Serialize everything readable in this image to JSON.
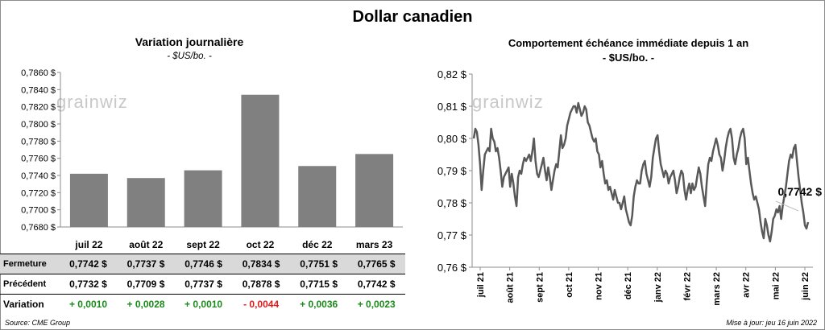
{
  "main_title": "Dollar canadien",
  "left": {
    "title": "Variation  journalière",
    "unit": "- $US/bo. -"
  },
  "right": {
    "title": "Comportement échéance immédiate depuis 1 an",
    "unit": "- $US/bo. -",
    "last_label": "0,7742 $"
  },
  "watermark": "grainwiz",
  "colors": {
    "bar": "#808080",
    "line": "#595959",
    "positive": "#1a8a1a",
    "negative": "#e01b1b",
    "header_fill": "#d9d9d9"
  },
  "table": {
    "row_labels": [
      "Fermeture",
      "Précédent",
      "Variation"
    ],
    "fermeture": [
      "0,7742 $",
      "0,7737 $",
      "0,7746 $",
      "0,7834 $",
      "0,7751 $",
      "0,7765 $"
    ],
    "precedent": [
      "0,7732 $",
      "0,7709 $",
      "0,7737 $",
      "0,7878 $",
      "0,7715 $",
      "0,7742 $"
    ],
    "variation": [
      "+ 0,0010",
      "+ 0,0028",
      "+ 0,0010",
      "- 0,0044",
      "+ 0,0036",
      "+ 0,0023"
    ]
  },
  "footer": {
    "source": "Source: CME Group",
    "update": "Mise à jour: jeu 16 juin 2022"
  },
  "chart_data": [
    {
      "type": "bar",
      "title": "Variation  journalière",
      "categories": [
        "juil 22",
        "août 22",
        "sept 22",
        "oct 22",
        "déc 22",
        "mars 23"
      ],
      "values": [
        0.7742,
        0.7737,
        0.7746,
        0.7834,
        0.7751,
        0.7765
      ],
      "ylim": [
        0.768,
        0.786
      ],
      "yticks": [
        "0,7680 $",
        "0,7700 $",
        "0,7720 $",
        "0,7740 $",
        "0,7760 $",
        "0,7780 $",
        "0,7800 $",
        "0,7820 $",
        "0,7840 $",
        "0,7860 $"
      ],
      "grid": false
    },
    {
      "type": "line",
      "title": "Comportement échéance immédiate depuis 1 an",
      "xlabels": [
        "juil 21",
        "août 21",
        "sept 21",
        "oct 21",
        "nov 21",
        "déc 21",
        "janv 22",
        "févr 22",
        "mars 22",
        "avr 22",
        "mai 22",
        "juin 22"
      ],
      "yticks": [
        "0,76 $",
        "0,77 $",
        "0,78 $",
        "0,79 $",
        "0,80 $",
        "0,81 $",
        "0,82 $"
      ],
      "ylim": [
        0.76,
        0.82
      ],
      "values": [
        0.8,
        0.803,
        0.802,
        0.798,
        0.792,
        0.784,
        0.79,
        0.795,
        0.796,
        0.797,
        0.796,
        0.803,
        0.8,
        0.799,
        0.796,
        0.797,
        0.794,
        0.79,
        0.785,
        0.788,
        0.789,
        0.79,
        0.791,
        0.785,
        0.789,
        0.786,
        0.782,
        0.779,
        0.788,
        0.79,
        0.789,
        0.792,
        0.794,
        0.793,
        0.794,
        0.795,
        0.793,
        0.796,
        0.8,
        0.793,
        0.789,
        0.788,
        0.79,
        0.792,
        0.794,
        0.79,
        0.787,
        0.791,
        0.788,
        0.784,
        0.787,
        0.79,
        0.792,
        0.791,
        0.796,
        0.801,
        0.797,
        0.798,
        0.8,
        0.804,
        0.806,
        0.808,
        0.809,
        0.81,
        0.81,
        0.808,
        0.811,
        0.809,
        0.807,
        0.808,
        0.81,
        0.809,
        0.805,
        0.804,
        0.802,
        0.8,
        0.799,
        0.8,
        0.796,
        0.795,
        0.791,
        0.793,
        0.789,
        0.786,
        0.787,
        0.784,
        0.785,
        0.783,
        0.781,
        0.784,
        0.782,
        0.78,
        0.78,
        0.778,
        0.78,
        0.782,
        0.778,
        0.776,
        0.774,
        0.773,
        0.776,
        0.782,
        0.785,
        0.787,
        0.786,
        0.786,
        0.79,
        0.792,
        0.793,
        0.789,
        0.787,
        0.785,
        0.788,
        0.794,
        0.797,
        0.8,
        0.801,
        0.796,
        0.792,
        0.79,
        0.788,
        0.79,
        0.789,
        0.786,
        0.788,
        0.789,
        0.79,
        0.787,
        0.783,
        0.785,
        0.788,
        0.79,
        0.789,
        0.784,
        0.781,
        0.784,
        0.786,
        0.783,
        0.786,
        0.784,
        0.785,
        0.788,
        0.791,
        0.789,
        0.785,
        0.782,
        0.779,
        0.786,
        0.792,
        0.794,
        0.793,
        0.796,
        0.798,
        0.8,
        0.798,
        0.795,
        0.794,
        0.79,
        0.793,
        0.797,
        0.8,
        0.802,
        0.803,
        0.8,
        0.794,
        0.792,
        0.795,
        0.797,
        0.8,
        0.802,
        0.803,
        0.8,
        0.792,
        0.794,
        0.79,
        0.786,
        0.783,
        0.781,
        0.782,
        0.78,
        0.778,
        0.774,
        0.771,
        0.769,
        0.775,
        0.773,
        0.77,
        0.768,
        0.771,
        0.775,
        0.776,
        0.778,
        0.777,
        0.779,
        0.775,
        0.779,
        0.782,
        0.785,
        0.789,
        0.793,
        0.795,
        0.794,
        0.797,
        0.798,
        0.793,
        0.788,
        0.784,
        0.78,
        0.777,
        0.773,
        0.772,
        0.774
      ]
    }
  ]
}
